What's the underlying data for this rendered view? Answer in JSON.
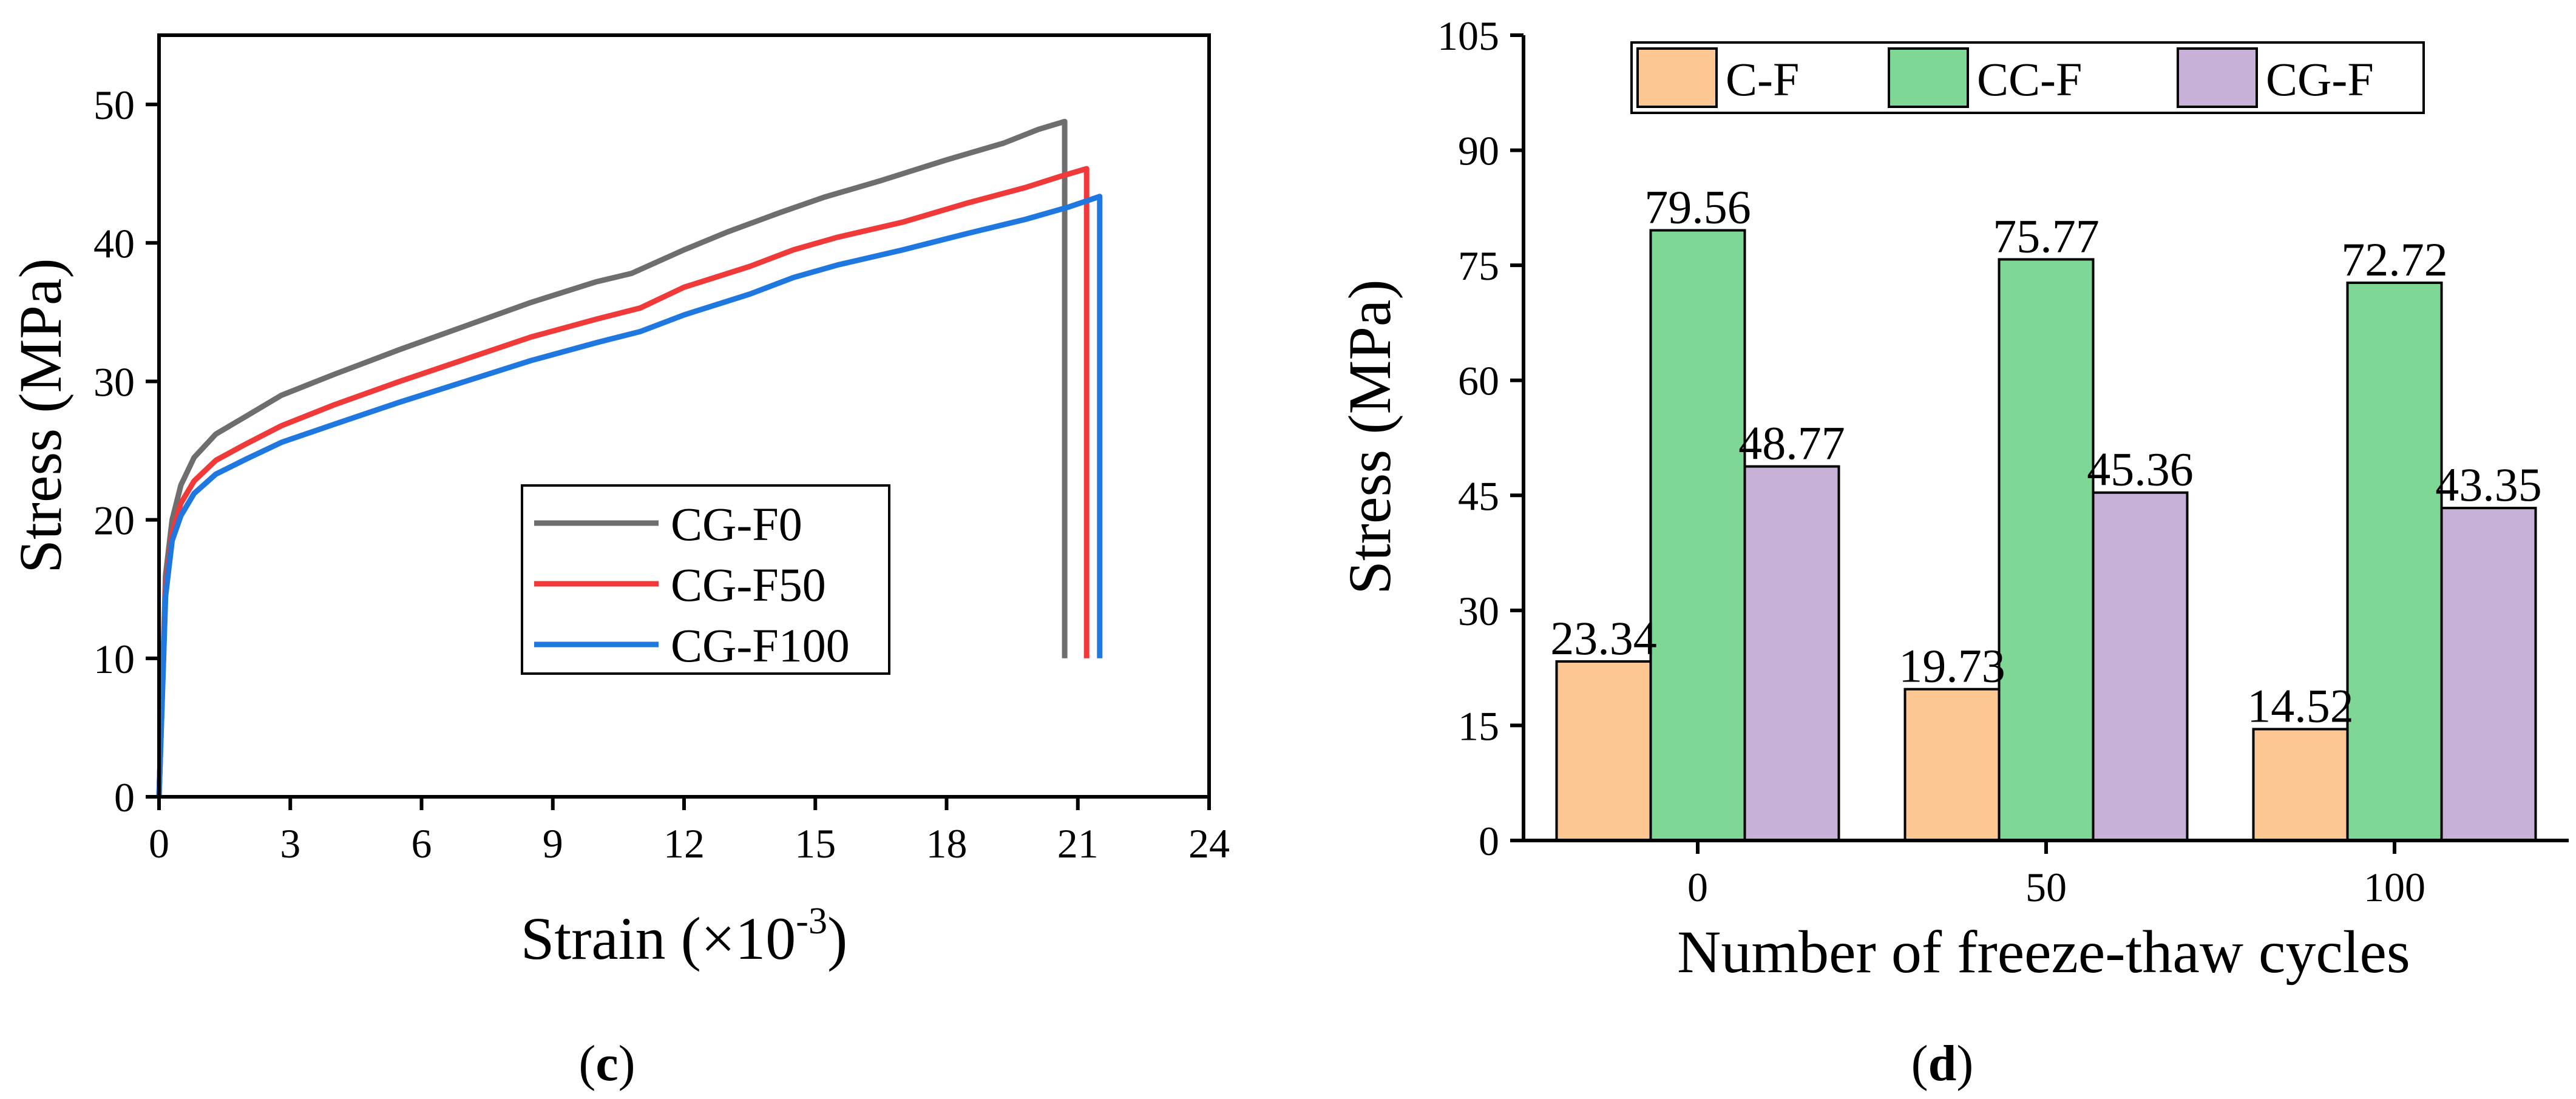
{
  "chart_data": [
    {
      "id": "c",
      "type": "line",
      "panel_label": "c",
      "xlabel": "Strain (×10",
      "xlabel_sup": "-3",
      "xlabel_end": ")",
      "ylabel": "Stress (MPa)",
      "xlim": [
        0,
        24
      ],
      "ylim": [
        0,
        55
      ],
      "xticks": [
        0,
        3,
        6,
        9,
        12,
        15,
        18,
        21,
        24
      ],
      "yticks": [
        0,
        10,
        20,
        30,
        40,
        50
      ],
      "legend_position": "center",
      "series": [
        {
          "name": "CG-F0",
          "color": "#6e6e6e",
          "x": [
            0,
            0.15,
            0.3,
            0.5,
            0.8,
            1.3,
            2,
            2.8,
            4,
            5.5,
            7,
            8.5,
            10,
            10.8,
            12,
            13,
            14.2,
            15.2,
            16.5,
            18,
            19.3,
            20.1,
            20.7,
            20.7
          ],
          "y": [
            0,
            16,
            20,
            22.5,
            24.5,
            26.2,
            27.5,
            29,
            30.5,
            32.3,
            34,
            35.7,
            37.2,
            37.8,
            39.5,
            40.8,
            42.2,
            43.3,
            44.5,
            46,
            47.2,
            48.2,
            48.77,
            10
          ]
        },
        {
          "name": "CG-F50",
          "color": "#f03a3a",
          "x": [
            0,
            0.15,
            0.3,
            0.5,
            0.8,
            1.3,
            2,
            2.8,
            4,
            5.5,
            7,
            8.5,
            10,
            11,
            12,
            13.5,
            14.5,
            15.5,
            17,
            18.5,
            19.8,
            20.6,
            21.2,
            21.2
          ],
          "y": [
            0,
            15,
            19,
            21.2,
            22.8,
            24.3,
            25.5,
            26.8,
            28.3,
            30,
            31.6,
            33.2,
            34.5,
            35.3,
            36.8,
            38.3,
            39.5,
            40.4,
            41.5,
            42.9,
            44,
            44.8,
            45.36,
            10
          ]
        },
        {
          "name": "CG-F100",
          "color": "#1f77e0",
          "x": [
            0,
            0.15,
            0.3,
            0.5,
            0.8,
            1.3,
            2,
            2.8,
            4,
            5.5,
            7,
            8.5,
            10,
            11,
            12,
            13.5,
            14.5,
            15.5,
            17,
            18.5,
            19.8,
            20.8,
            21.5,
            21.5
          ],
          "y": [
            0,
            14.5,
            18.5,
            20.3,
            21.9,
            23.3,
            24.4,
            25.6,
            26.9,
            28.5,
            30,
            31.5,
            32.8,
            33.6,
            34.8,
            36.3,
            37.5,
            38.4,
            39.5,
            40.7,
            41.7,
            42.6,
            43.35,
            10
          ]
        }
      ]
    },
    {
      "id": "d",
      "type": "bar",
      "panel_label": "d",
      "xlabel": "Number of freeze-thaw cycles",
      "ylabel": "Stress (MPa)",
      "ylim": [
        0,
        105
      ],
      "yticks": [
        0,
        15,
        30,
        45,
        60,
        75,
        90,
        105
      ],
      "categories": [
        "0",
        "50",
        "100"
      ],
      "legend_position": "top",
      "series": [
        {
          "name": "C-F",
          "color": "#fcc793",
          "values": [
            23.34,
            19.73,
            14.52
          ],
          "labels": [
            "23.34",
            "19.73",
            "14.52"
          ]
        },
        {
          "name": "CC-F",
          "color": "#7fd796",
          "values": [
            79.56,
            75.77,
            72.72
          ],
          "labels": [
            "79.56",
            "75.77",
            "72.72"
          ]
        },
        {
          "name": "CG-F",
          "color": "#c7b1d8",
          "values": [
            48.77,
            45.36,
            43.35
          ],
          "labels": [
            "48.77",
            "45.36",
            "43.35"
          ]
        }
      ]
    }
  ]
}
